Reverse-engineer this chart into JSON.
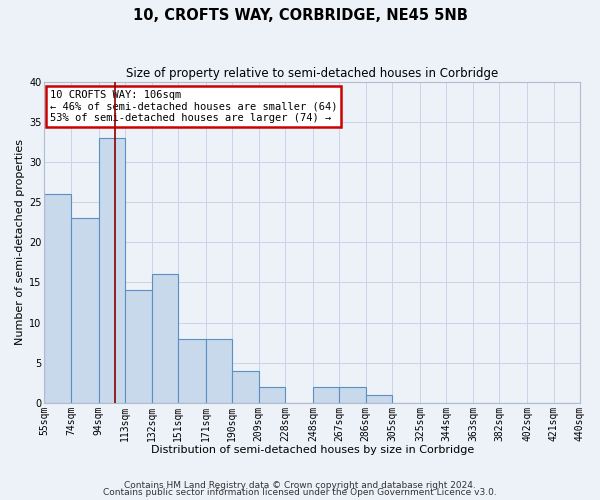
{
  "title": "10, CROFTS WAY, CORBRIDGE, NE45 5NB",
  "subtitle": "Size of property relative to semi-detached houses in Corbridge",
  "xlabel": "Distribution of semi-detached houses by size in Corbridge",
  "ylabel": "Number of semi-detached properties",
  "bar_values": [
    26,
    23,
    33,
    14,
    16,
    8,
    8,
    4,
    2,
    0,
    2,
    2,
    1,
    0,
    0,
    0,
    0,
    0,
    0,
    0
  ],
  "bin_edges": [
    55,
    74,
    94,
    113,
    132,
    151,
    171,
    190,
    209,
    228,
    248,
    267,
    286,
    305,
    325,
    344,
    363,
    382,
    402,
    421,
    440
  ],
  "x_tick_labels": [
    "55sqm",
    "74sqm",
    "94sqm",
    "113sqm",
    "132sqm",
    "151sqm",
    "171sqm",
    "190sqm",
    "209sqm",
    "228sqm",
    "248sqm",
    "267sqm",
    "286sqm",
    "305sqm",
    "325sqm",
    "344sqm",
    "363sqm",
    "382sqm",
    "402sqm",
    "421sqm",
    "440sqm"
  ],
  "bar_color": "#c9d9ec",
  "bar_edge_color": "#5a8fc2",
  "bar_linewidth": 0.8,
  "property_line_x": 106,
  "property_line_color": "#8b0000",
  "ylim": [
    0,
    40
  ],
  "yticks": [
    0,
    5,
    10,
    15,
    20,
    25,
    30,
    35,
    40
  ],
  "grid_color": "#c8d4e8",
  "background_color": "#edf1f8",
  "annotation_title": "10 CROFTS WAY: 106sqm",
  "annotation_line1": "← 46% of semi-detached houses are smaller (64)",
  "annotation_line2": "53% of semi-detached houses are larger (74) →",
  "annotation_box_color": "#ffffff",
  "annotation_box_edge": "#cc0000",
  "footer_line1": "Contains HM Land Registry data © Crown copyright and database right 2024.",
  "footer_line2": "Contains public sector information licensed under the Open Government Licence v3.0.",
  "title_fontsize": 10.5,
  "subtitle_fontsize": 8.5,
  "axis_label_fontsize": 8,
  "tick_fontsize": 7,
  "annotation_fontsize": 7.5,
  "footer_fontsize": 6.5
}
